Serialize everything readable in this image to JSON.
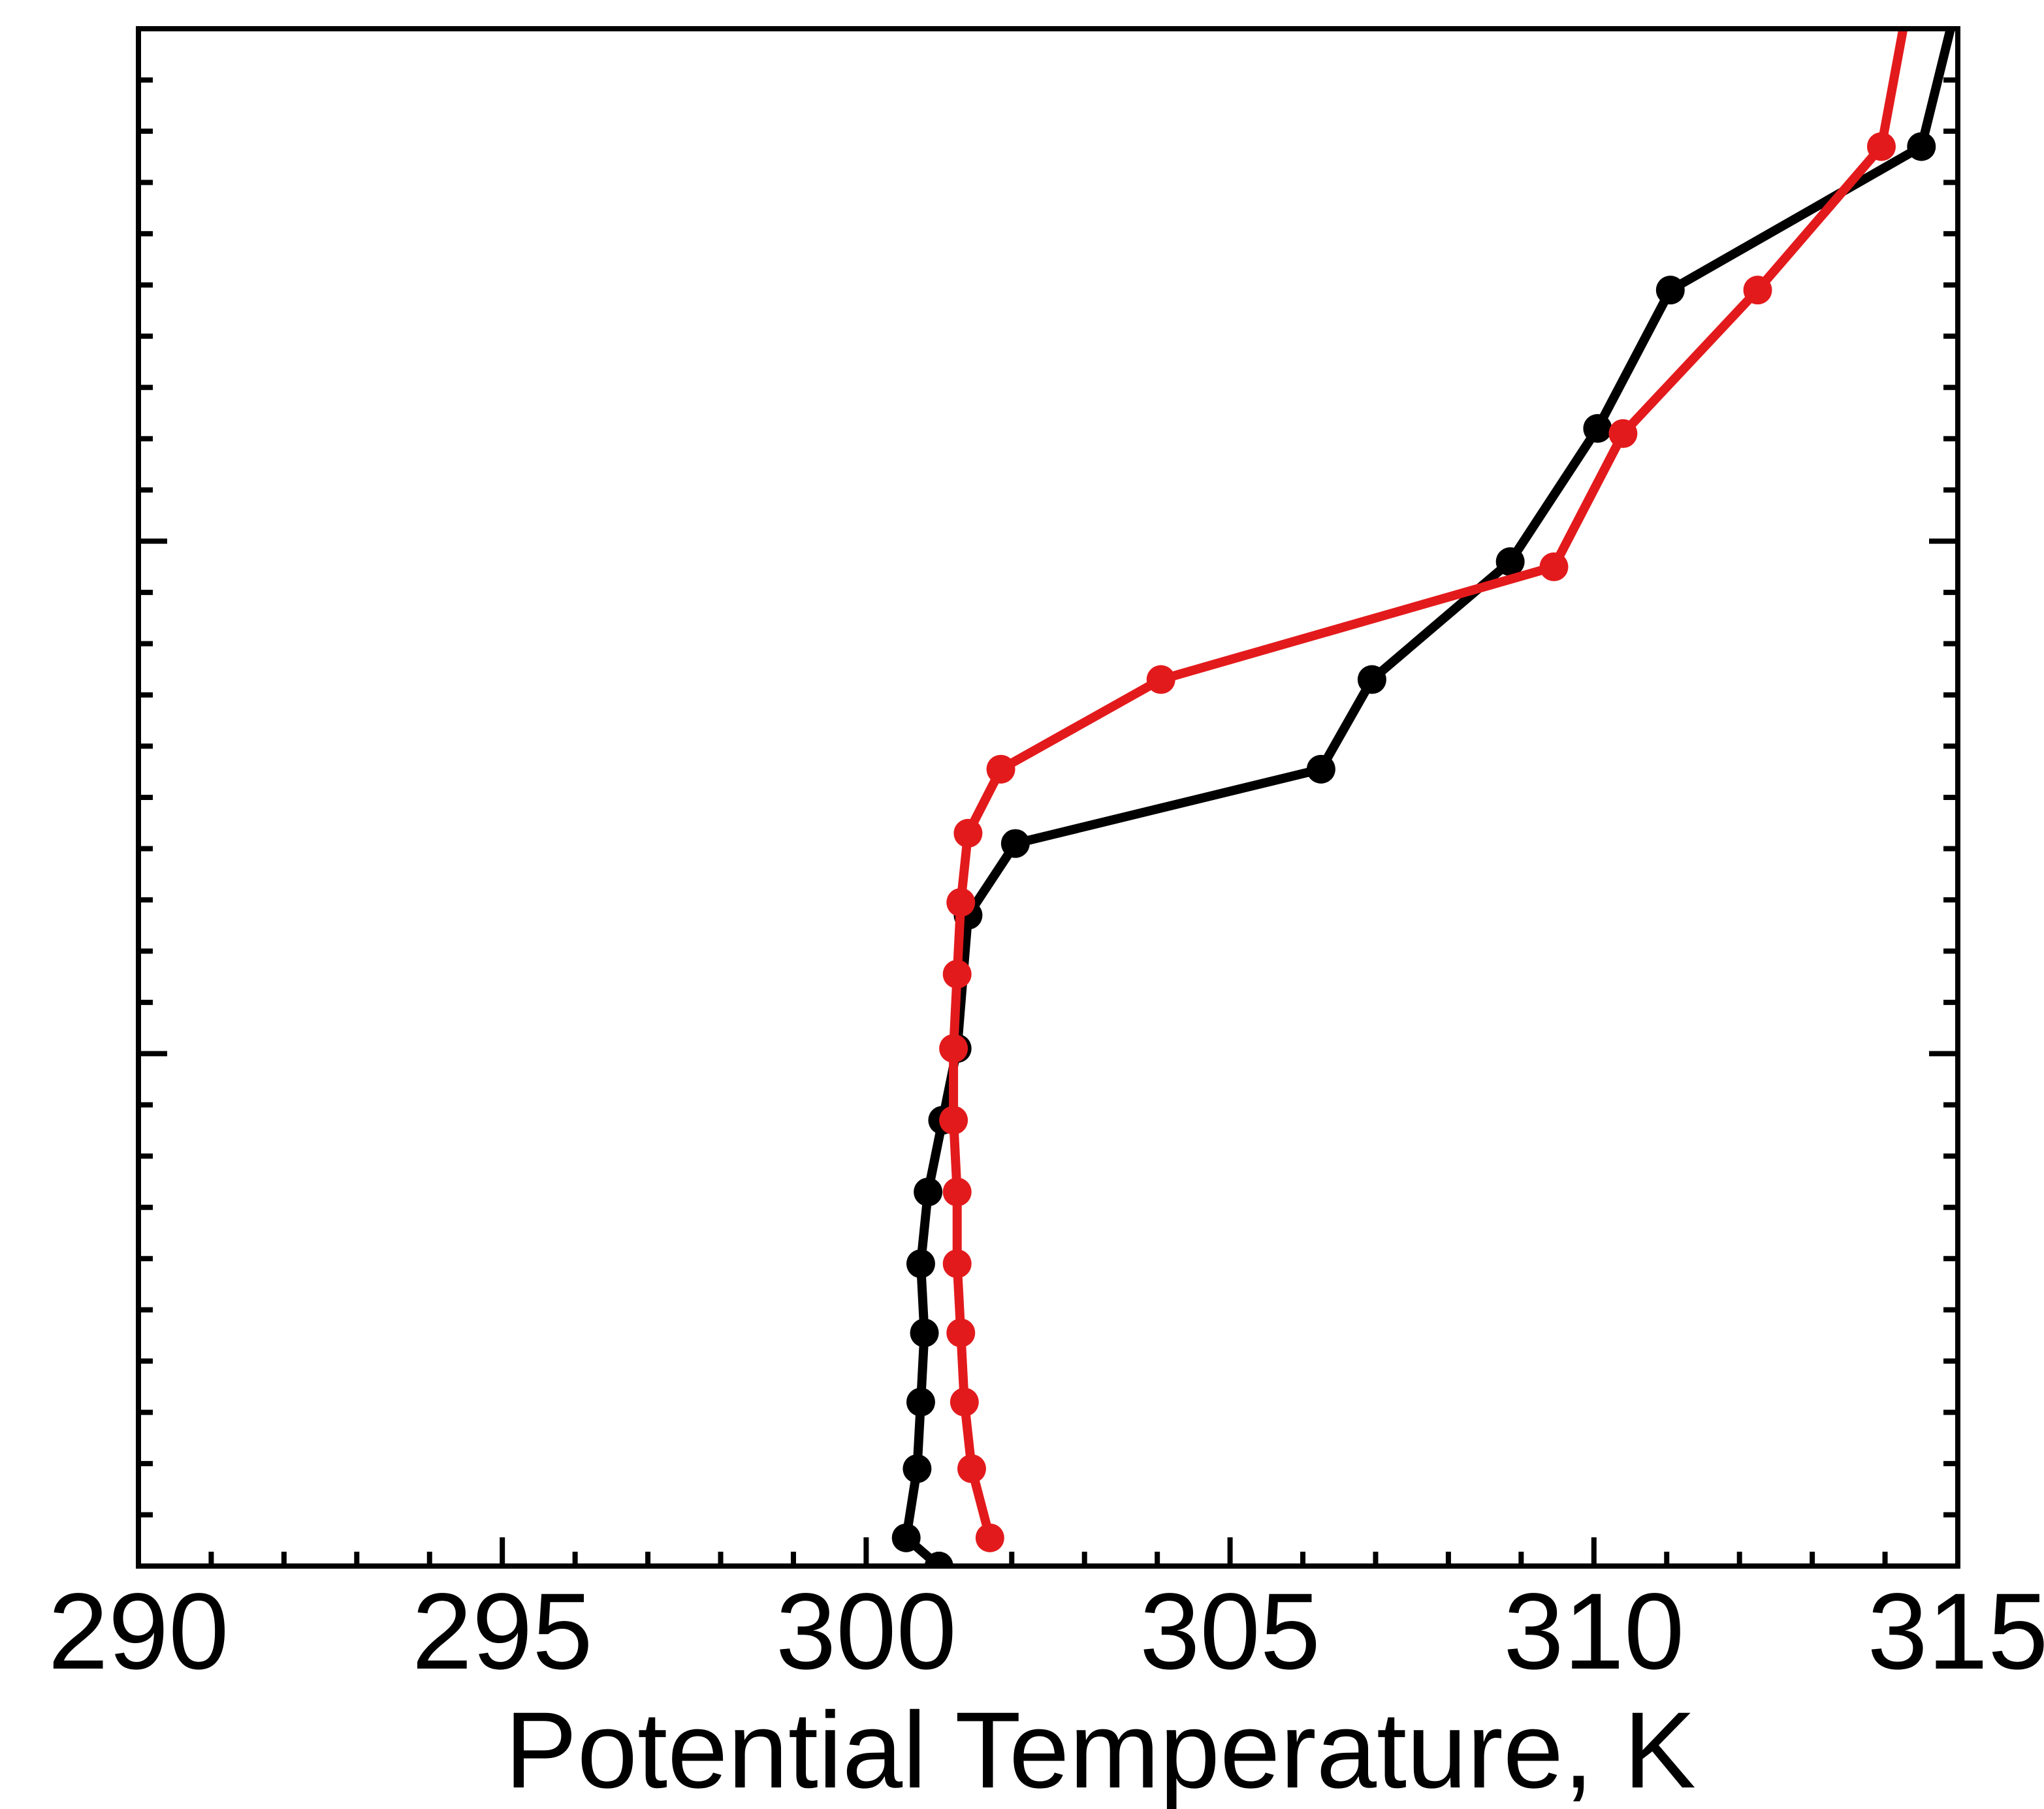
{
  "chart_data": {
    "type": "line",
    "title": "",
    "xlabel": "Potential Temperature, K",
    "ylabel": "",
    "xlim": [
      290,
      315
    ],
    "x_ticks": [
      "290",
      "295",
      "300",
      "305",
      "310",
      "315"
    ],
    "y_axis_labels_shown": false,
    "y_index_range": [
      0,
      30
    ],
    "grid": false,
    "legend": "none",
    "series": [
      {
        "color": "#000000",
        "points": [
          {
            "x": 301.0,
            "y": 0.0
          },
          {
            "x": 300.55,
            "y": 0.55
          },
          {
            "x": 300.7,
            "y": 1.9
          },
          {
            "x": 300.75,
            "y": 3.2
          },
          {
            "x": 300.8,
            "y": 4.55
          },
          {
            "x": 300.75,
            "y": 5.9
          },
          {
            "x": 300.85,
            "y": 7.3
          },
          {
            "x": 301.05,
            "y": 8.7
          },
          {
            "x": 301.25,
            "y": 10.1
          },
          {
            "x": 301.4,
            "y": 12.7
          },
          {
            "x": 302.05,
            "y": 14.1
          },
          {
            "x": 306.25,
            "y": 15.55
          },
          {
            "x": 306.95,
            "y": 17.3
          },
          {
            "x": 308.85,
            "y": 19.6
          },
          {
            "x": 310.05,
            "y": 22.2
          },
          {
            "x": 311.05,
            "y": 24.9
          },
          {
            "x": 314.5,
            "y": 27.7
          },
          {
            "x": 314.9,
            "y": 30.0
          }
        ]
      },
      {
        "color": "#e31a1c",
        "points": [
          {
            "x": 301.7,
            "y": 0.55
          },
          {
            "x": 301.45,
            "y": 1.9
          },
          {
            "x": 301.35,
            "y": 3.2
          },
          {
            "x": 301.3,
            "y": 4.55
          },
          {
            "x": 301.25,
            "y": 5.9
          },
          {
            "x": 301.25,
            "y": 7.3
          },
          {
            "x": 301.2,
            "y": 8.7
          },
          {
            "x": 301.2,
            "y": 10.1
          },
          {
            "x": 301.25,
            "y": 11.55
          },
          {
            "x": 301.3,
            "y": 12.95
          },
          {
            "x": 301.4,
            "y": 14.3
          },
          {
            "x": 301.85,
            "y": 15.55
          },
          {
            "x": 304.05,
            "y": 17.3
          },
          {
            "x": 309.45,
            "y": 19.5
          },
          {
            "x": 310.4,
            "y": 22.1
          },
          {
            "x": 312.25,
            "y": 24.9
          },
          {
            "x": 313.95,
            "y": 27.7
          },
          {
            "x": 314.25,
            "y": 30.0
          }
        ]
      }
    ],
    "marker_flags": {
      "black_last_point_marker": false,
      "red_last_point_marker": false
    }
  }
}
